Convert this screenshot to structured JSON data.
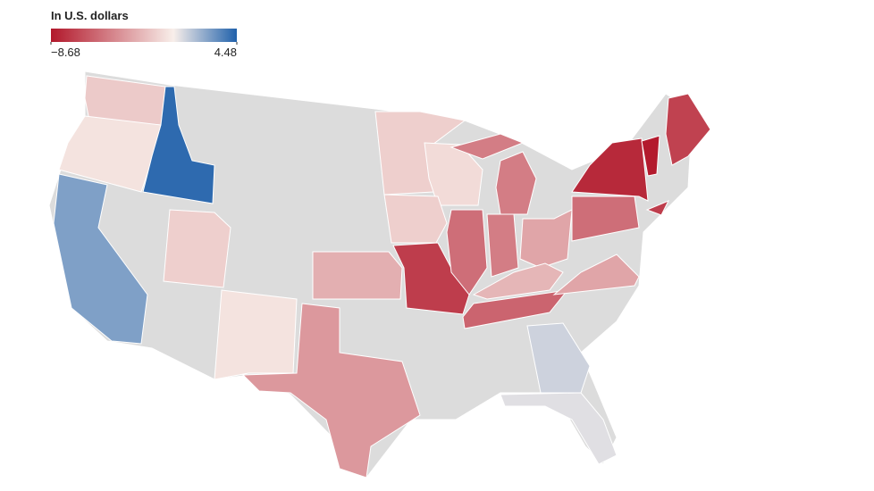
{
  "chart_data": {
    "type": "choropleth",
    "title": "In U.S. dollars",
    "clim": [
      -8.68,
      4.48
    ],
    "cticks": [
      {
        "value": -8.68,
        "label": "−8.68"
      },
      4.48
    ],
    "colors": [
      "#b2182b",
      "#f8efea",
      "#2061ab"
    ],
    "missing_color": "#dcdcdc",
    "values": [
      -1.5,
      -0.5,
      4.2,
      2.5,
      -1.3,
      -0.5,
      -3.5,
      -2.6,
      -7.2,
      -1.3,
      -0.8,
      -1.3,
      -5.2,
      -4.6,
      -4.6,
      -4.6,
      -3.0,
      -2.3,
      -5.6,
      -5.2,
      -3.0,
      -8.0,
      -8.6,
      -7.0,
      -7.2,
      0.9,
      0.5
    ]
  }
}
